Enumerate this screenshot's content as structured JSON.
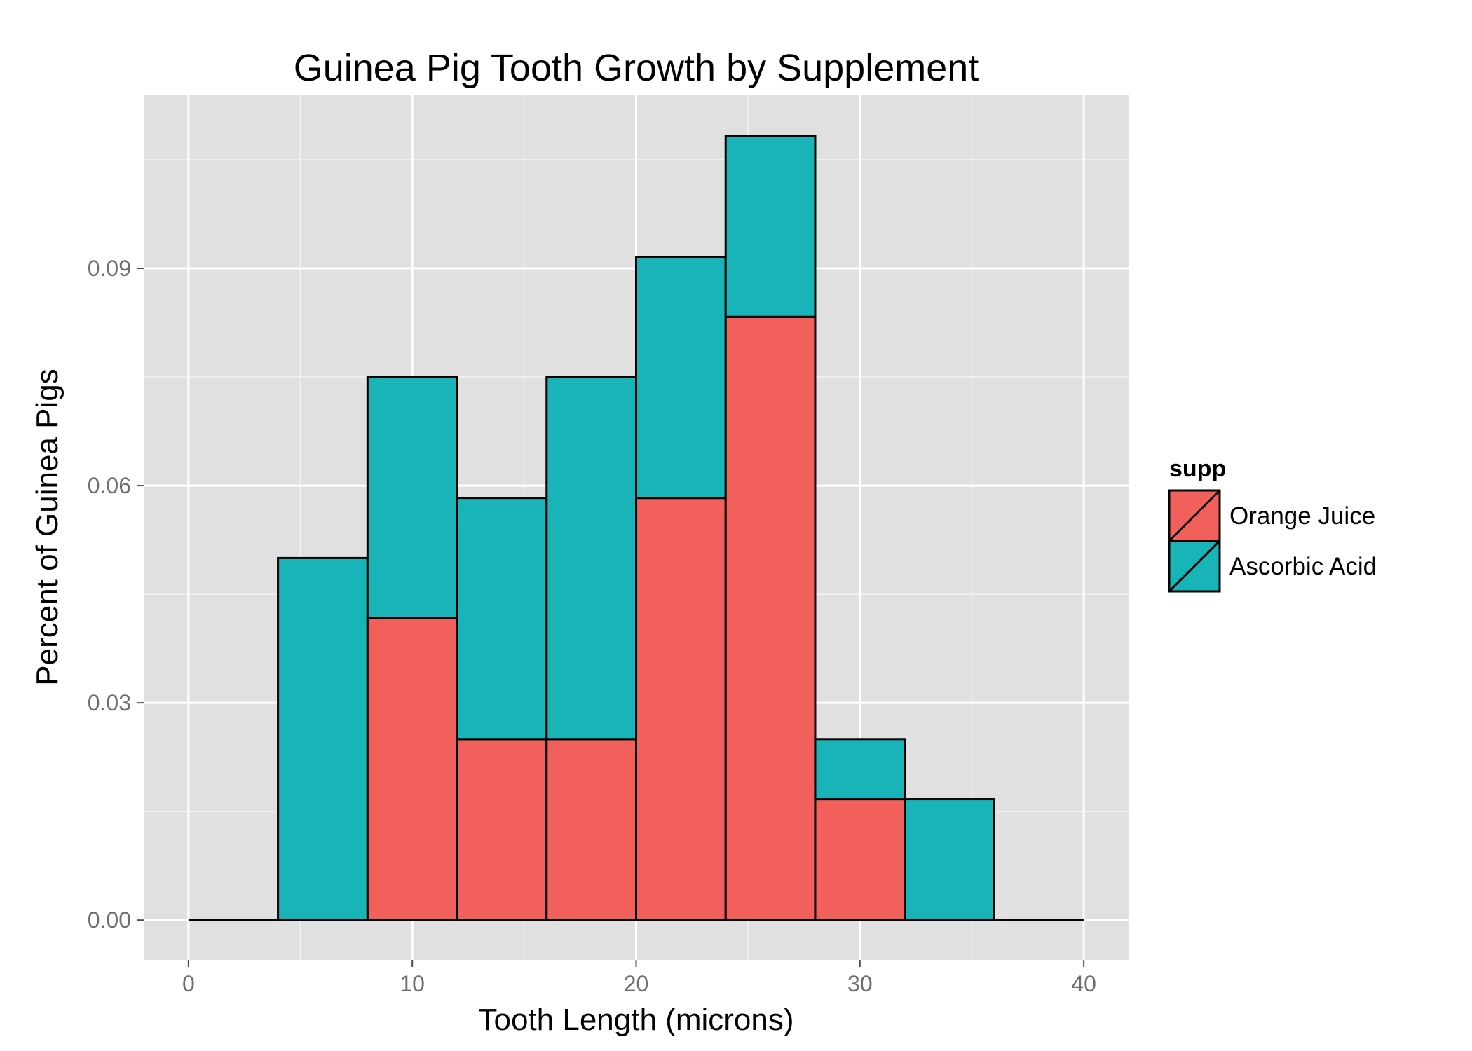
{
  "chart_data": {
    "type": "bar",
    "stacked": true,
    "histogram": true,
    "title": "Guinea Pig Tooth Growth by Supplement",
    "xlabel": "Tooth Length (microns)",
    "ylabel": "Percent of Guinea Pigs",
    "xlim": [
      -2,
      42
    ],
    "ylim": [
      -0.0055,
      0.114
    ],
    "x_ticks": [
      0,
      10,
      20,
      30,
      40
    ],
    "x_tick_labels": [
      "0",
      "10",
      "20",
      "30",
      "40"
    ],
    "y_ticks": [
      0.0,
      0.03,
      0.06,
      0.09
    ],
    "y_tick_labels": [
      "0.00",
      "0.03",
      "0.06",
      "0.09"
    ],
    "bins": [
      [
        0,
        4
      ],
      [
        4,
        8
      ],
      [
        8,
        12
      ],
      [
        12,
        16
      ],
      [
        16,
        20
      ],
      [
        20,
        24
      ],
      [
        24,
        28
      ],
      [
        28,
        32
      ],
      [
        32,
        36
      ],
      [
        36,
        40
      ]
    ],
    "series": [
      {
        "name": "Orange Juice",
        "color": "#F2605C",
        "values": [
          0,
          0,
          0.0417,
          0.025,
          0.025,
          0.0583,
          0.0833,
          0.0167,
          0,
          0
        ]
      },
      {
        "name": "Ascorbic Acid",
        "color": "#19B4B7",
        "values": [
          0,
          0.05,
          0.0333,
          0.0333,
          0.05,
          0.0333,
          0.025,
          0.0083,
          0.0167,
          0
        ]
      }
    ],
    "grid": true,
    "legend": {
      "title": "supp",
      "position": "right"
    },
    "panel_background": "#E0E0E0",
    "grid_color": "#FFFFFF"
  }
}
